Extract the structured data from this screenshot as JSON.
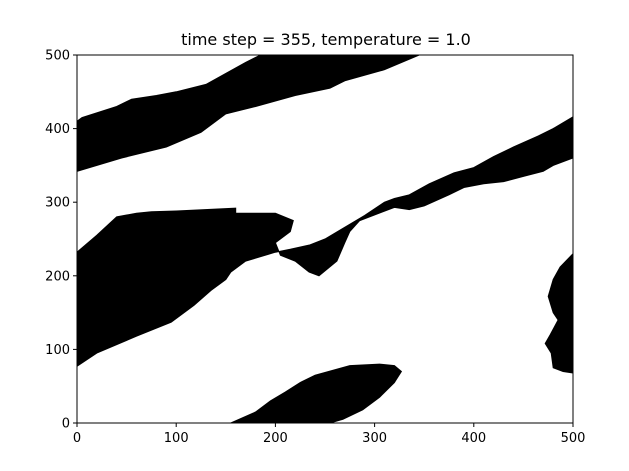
{
  "chart_data": {
    "type": "heatmap",
    "title": "time step = 355, temperature = 1.0",
    "xlabel": "",
    "ylabel": "",
    "xlim": [
      0,
      500
    ],
    "ylim": [
      0,
      500
    ],
    "xticks": [
      "0",
      "100",
      "200",
      "300",
      "400",
      "500"
    ],
    "yticks": [
      "0",
      "100",
      "200",
      "300",
      "400",
      "500"
    ],
    "grid": false,
    "colors": {
      "spin_down": "#000000",
      "spin_up": "#ffffff"
    },
    "domains": [
      {
        "name": "top-left-band",
        "outline": [
          [
            0,
            410
          ],
          [
            5,
            415
          ],
          [
            40,
            430
          ],
          [
            55,
            440
          ],
          [
            80,
            445
          ],
          [
            100,
            450
          ],
          [
            130,
            460
          ],
          [
            150,
            475
          ],
          [
            170,
            490
          ],
          [
            185,
            500
          ],
          [
            345,
            500
          ],
          [
            310,
            480
          ],
          [
            270,
            465
          ],
          [
            255,
            455
          ],
          [
            220,
            445
          ],
          [
            180,
            430
          ],
          [
            150,
            420
          ],
          [
            125,
            395
          ],
          [
            90,
            375
          ],
          [
            45,
            360
          ],
          [
            0,
            342
          ]
        ]
      },
      {
        "name": "central-and-right-band",
        "outline": [
          [
            0,
            232
          ],
          [
            20,
            255
          ],
          [
            40,
            280
          ],
          [
            60,
            285
          ],
          [
            75,
            287
          ],
          [
            100,
            288
          ],
          [
            160,
            292
          ],
          [
            160,
            285
          ],
          [
            200,
            285
          ],
          [
            218,
            275
          ],
          [
            215,
            260
          ],
          [
            200,
            245
          ],
          [
            205,
            228
          ],
          [
            220,
            220
          ],
          [
            234,
            205
          ],
          [
            244,
            200
          ],
          [
            262,
            220
          ],
          [
            270,
            245
          ],
          [
            275,
            260
          ],
          [
            285,
            275
          ],
          [
            320,
            293
          ],
          [
            335,
            290
          ],
          [
            350,
            295
          ],
          [
            375,
            310
          ],
          [
            390,
            320
          ],
          [
            410,
            325
          ],
          [
            430,
            328
          ],
          [
            450,
            335
          ],
          [
            470,
            342
          ],
          [
            480,
            350
          ],
          [
            500,
            360
          ],
          [
            500,
            416
          ],
          [
            480,
            400
          ],
          [
            465,
            390
          ],
          [
            440,
            375
          ],
          [
            420,
            362
          ],
          [
            400,
            347
          ],
          [
            380,
            340
          ],
          [
            355,
            325
          ],
          [
            335,
            310
          ],
          [
            320,
            305
          ],
          [
            310,
            300
          ],
          [
            290,
            282
          ],
          [
            265,
            262
          ],
          [
            250,
            250
          ],
          [
            235,
            242
          ],
          [
            215,
            236
          ],
          [
            200,
            232
          ],
          [
            170,
            220
          ],
          [
            155,
            205
          ],
          [
            150,
            195
          ],
          [
            135,
            180
          ],
          [
            118,
            160
          ],
          [
            95,
            137
          ],
          [
            60,
            118
          ],
          [
            20,
            95
          ],
          [
            0,
            77
          ]
        ]
      },
      {
        "name": "bottom-center-blob",
        "outline": [
          [
            155,
            0
          ],
          [
            180,
            15
          ],
          [
            195,
            30
          ],
          [
            210,
            42
          ],
          [
            225,
            55
          ],
          [
            240,
            65
          ],
          [
            275,
            78
          ],
          [
            305,
            80
          ],
          [
            320,
            78
          ],
          [
            327,
            70
          ],
          [
            320,
            55
          ],
          [
            305,
            35
          ],
          [
            288,
            18
          ],
          [
            268,
            5
          ],
          [
            255,
            0
          ]
        ]
      },
      {
        "name": "right-edge-patch",
        "outline": [
          [
            500,
            230
          ],
          [
            487,
            212
          ],
          [
            480,
            195
          ],
          [
            475,
            172
          ],
          [
            480,
            150
          ],
          [
            485,
            140
          ],
          [
            477,
            120
          ],
          [
            472,
            108
          ],
          [
            478,
            95
          ],
          [
            480,
            75
          ],
          [
            490,
            70
          ],
          [
            500,
            68
          ]
        ]
      }
    ]
  }
}
